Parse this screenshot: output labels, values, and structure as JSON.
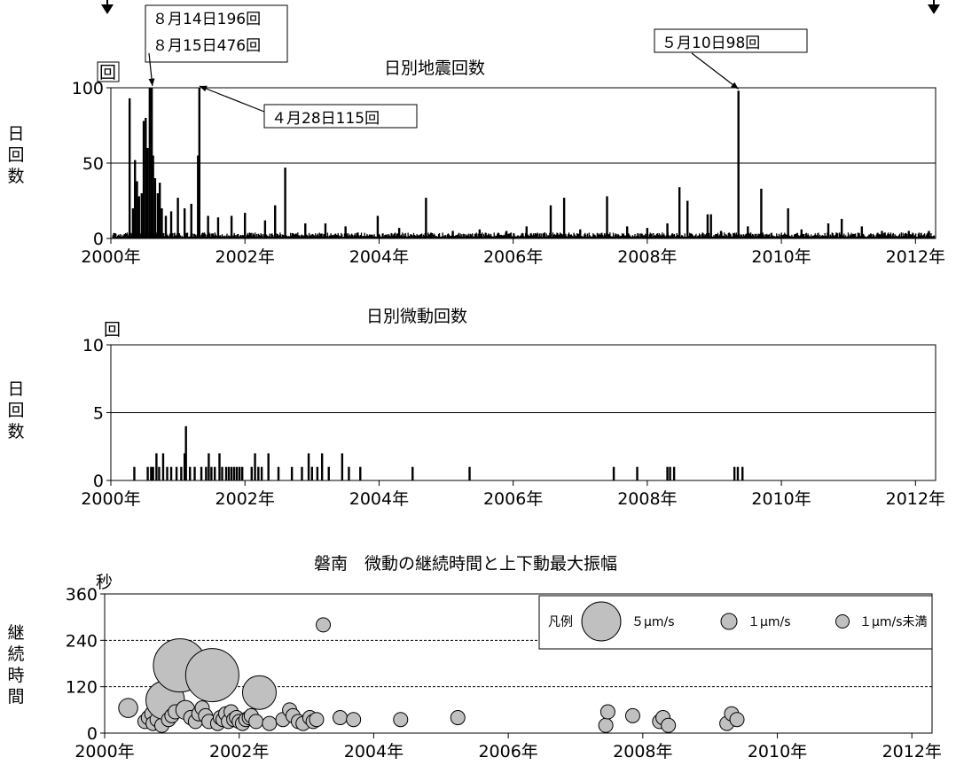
{
  "chart_data": [
    {
      "type": "bar",
      "title": "日別地震回数",
      "unit_label": "回",
      "ylabel": "日回数",
      "ylim": [
        0,
        100
      ],
      "yticks": [
        0,
        50,
        100
      ],
      "xlim": [
        2000,
        2012.3
      ],
      "xticks": [
        "2000年",
        "2002年",
        "2004年",
        "2006年",
        "2008年",
        "2010年",
        "2012年"
      ],
      "grid": "y-major",
      "annotations": [
        {
          "text1": "８月14日196回",
          "text2": "８月15日476回",
          "x": 2000.62,
          "y": 100
        },
        {
          "text1": "４月28日115回",
          "x": 2001.32,
          "y": 100
        },
        {
          "text1": "５月10日98回",
          "x": 2009.36,
          "y": 98
        }
      ],
      "x": [
        2000.28,
        2000.33,
        2000.36,
        2000.39,
        2000.42,
        2000.46,
        2000.49,
        2000.52,
        2000.55,
        2000.58,
        2000.61,
        2000.63,
        2000.66,
        2000.7,
        2000.73,
        2000.76,
        2000.82,
        2000.9,
        2001.0,
        2001.1,
        2001.2,
        2001.3,
        2001.32,
        2001.45,
        2001.6,
        2001.8,
        2002.0,
        2002.3,
        2002.45,
        2002.6,
        2002.9,
        2003.2,
        2003.5,
        2003.98,
        2004.3,
        2004.7,
        2005.1,
        2005.5,
        2005.9,
        2006.2,
        2006.56,
        2006.76,
        2007.0,
        2007.4,
        2007.7,
        2008.0,
        2008.3,
        2008.48,
        2008.6,
        2008.9,
        2008.95,
        2009.1,
        2009.36,
        2009.5,
        2009.7,
        2010.1,
        2010.3,
        2010.7,
        2010.9,
        2011.2,
        2011.5,
        2011.9,
        2012.2
      ],
      "values": [
        93,
        20,
        52,
        38,
        28,
        30,
        78,
        80,
        60,
        100,
        100,
        55,
        40,
        30,
        37,
        20,
        15,
        18,
        27,
        20,
        23,
        55,
        100,
        15,
        14,
        15,
        17,
        12,
        22,
        47,
        10,
        10,
        8,
        15,
        7,
        27,
        5,
        6,
        5,
        8,
        22,
        27,
        6,
        28,
        8,
        7,
        10,
        34,
        25,
        16,
        16,
        5,
        98,
        8,
        33,
        20,
        6,
        10,
        13,
        8,
        5,
        5,
        5
      ]
    },
    {
      "type": "bar",
      "title": "日別微動回数",
      "unit_label": "回",
      "ylabel": "日回数",
      "ylim": [
        0,
        10
      ],
      "yticks": [
        0,
        5,
        10
      ],
      "xlim": [
        2000,
        2012.3
      ],
      "xticks": [
        "2000年",
        "2002年",
        "2004年",
        "2006年",
        "2008年",
        "2010年",
        "2012年"
      ],
      "grid": "y-major",
      "x": [
        2000.35,
        2000.55,
        2000.6,
        2000.63,
        2000.68,
        2000.72,
        2000.78,
        2000.84,
        2000.9,
        2000.98,
        2001.05,
        2001.1,
        2001.12,
        2001.18,
        2001.25,
        2001.35,
        2001.42,
        2001.46,
        2001.5,
        2001.55,
        2001.62,
        2001.66,
        2001.72,
        2001.76,
        2001.8,
        2001.84,
        2001.88,
        2001.92,
        2001.96,
        2002.1,
        2002.15,
        2002.2,
        2002.25,
        2002.35,
        2002.5,
        2002.7,
        2002.85,
        2002.95,
        2003.0,
        2003.08,
        2003.15,
        2003.25,
        2003.45,
        2003.55,
        2003.72,
        2004.5,
        2005.35,
        2007.5,
        2007.85,
        2008.3,
        2008.34,
        2008.4,
        2009.3,
        2009.35,
        2009.42
      ],
      "values": [
        1,
        1,
        1,
        1,
        2,
        1,
        2,
        1,
        1,
        1,
        1,
        2,
        4,
        1,
        1,
        1,
        1,
        2,
        1,
        1,
        2,
        1,
        1,
        1,
        1,
        1,
        1,
        1,
        1,
        1,
        2,
        1,
        1,
        2,
        1,
        1,
        1,
        2,
        1,
        1,
        2,
        1,
        2,
        1,
        1,
        1,
        1,
        1,
        1,
        1,
        1,
        1,
        1,
        1,
        1
      ]
    },
    {
      "type": "scatter",
      "title": "磐南　微動の継続時間と上下動最大振幅",
      "unit_label": "秒",
      "ylabel": "継続時間",
      "ylim": [
        0,
        360
      ],
      "yticks": [
        0,
        120,
        240,
        360
      ],
      "xlim": [
        2000,
        2012.3
      ],
      "xticks": [
        "2000年",
        "2002年",
        "2004年",
        "2006年",
        "2008年",
        "2010年",
        "2012年"
      ],
      "grid": "y-dashed",
      "legend": {
        "placement": "top-right",
        "title": "凡例",
        "entries": [
          {
            "label": "５μm/s",
            "size": 5
          },
          {
            "label": "１μm/s",
            "size": 1
          },
          {
            "label": "１μm/s未満",
            "size": 0.5
          }
        ]
      },
      "points": [
        [
          2000.35,
          65,
          1.5
        ],
        [
          2000.6,
          30,
          1
        ],
        [
          2000.65,
          40,
          1
        ],
        [
          2000.7,
          50,
          1
        ],
        [
          2000.72,
          25,
          1
        ],
        [
          2000.78,
          35,
          1
        ],
        [
          2000.85,
          20,
          1
        ],
        [
          2000.9,
          85,
          3.5
        ],
        [
          2000.95,
          35,
          1
        ],
        [
          2001.0,
          45,
          1
        ],
        [
          2001.05,
          55,
          1
        ],
        [
          2001.12,
          175,
          5
        ],
        [
          2001.2,
          60,
          1.5
        ],
        [
          2001.28,
          40,
          1
        ],
        [
          2001.35,
          30,
          1
        ],
        [
          2001.4,
          50,
          1
        ],
        [
          2001.45,
          65,
          1
        ],
        [
          2001.5,
          45,
          1
        ],
        [
          2001.55,
          30,
          1
        ],
        [
          2001.6,
          150,
          5
        ],
        [
          2001.68,
          25,
          1
        ],
        [
          2001.72,
          40,
          1
        ],
        [
          2001.76,
          35,
          1
        ],
        [
          2001.8,
          50,
          1
        ],
        [
          2001.84,
          30,
          1
        ],
        [
          2001.88,
          55,
          1
        ],
        [
          2001.92,
          35,
          1
        ],
        [
          2001.96,
          40,
          1
        ],
        [
          2002.0,
          30,
          1
        ],
        [
          2002.05,
          25,
          1
        ],
        [
          2002.1,
          35,
          1
        ],
        [
          2002.15,
          40,
          1
        ],
        [
          2002.18,
          45,
          1
        ],
        [
          2002.25,
          30,
          1
        ],
        [
          2002.3,
          105,
          3
        ],
        [
          2002.45,
          25,
          1
        ],
        [
          2002.65,
          35,
          1
        ],
        [
          2002.75,
          60,
          1
        ],
        [
          2002.8,
          45,
          1
        ],
        [
          2002.88,
          30,
          1
        ],
        [
          2002.95,
          25,
          1
        ],
        [
          2003.05,
          40,
          1
        ],
        [
          2003.1,
          30,
          1
        ],
        [
          2003.15,
          35,
          1
        ],
        [
          2003.25,
          280,
          1
        ],
        [
          2003.5,
          40,
          1
        ],
        [
          2003.7,
          35,
          1
        ],
        [
          2004.4,
          35,
          1
        ],
        [
          2005.25,
          40,
          1
        ],
        [
          2007.45,
          20,
          1
        ],
        [
          2007.48,
          55,
          1
        ],
        [
          2007.85,
          45,
          1
        ],
        [
          2008.25,
          30,
          1
        ],
        [
          2008.3,
          40,
          1
        ],
        [
          2008.38,
          20,
          1
        ],
        [
          2009.25,
          25,
          1
        ],
        [
          2009.32,
          50,
          1
        ],
        [
          2009.4,
          35,
          1
        ]
      ]
    }
  ]
}
